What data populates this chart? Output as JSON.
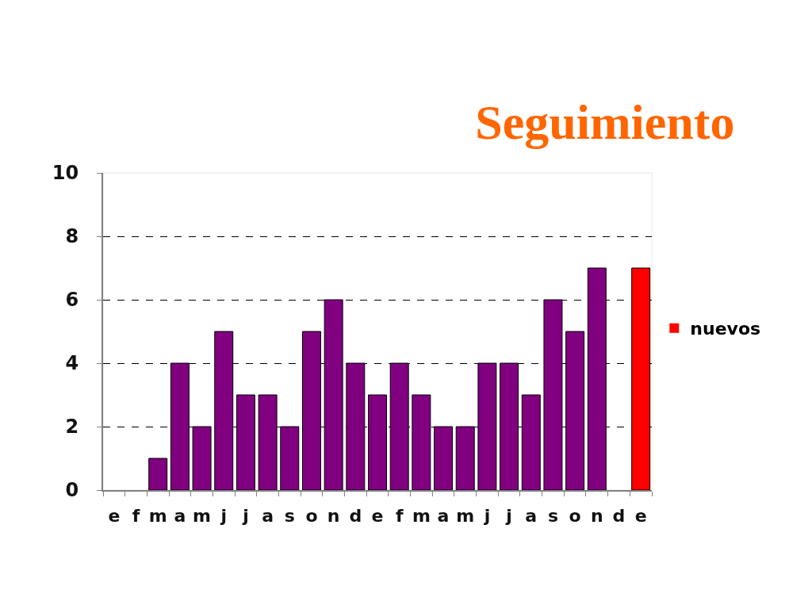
{
  "chart_data": {
    "type": "bar",
    "title": "Seguimiento",
    "categories": [
      "e",
      "f",
      "m",
      "a",
      "m",
      "j",
      "j",
      "a",
      "s",
      "o",
      "n",
      "d",
      "e",
      "f",
      "m",
      "a",
      "m",
      "j",
      "j",
      "a",
      "s",
      "o",
      "n",
      "d",
      "e"
    ],
    "series": [
      {
        "name": "nuevos",
        "color": "#ff0000",
        "values": [
          null,
          null,
          1,
          4,
          2,
          5,
          3,
          3,
          2,
          5,
          6,
          4,
          3,
          4,
          3,
          2,
          2,
          4,
          4,
          3,
          6,
          5,
          7,
          null,
          7
        ],
        "colors": [
          "#800080",
          "#800080",
          "#800080",
          "#800080",
          "#800080",
          "#800080",
          "#800080",
          "#800080",
          "#800080",
          "#800080",
          "#800080",
          "#800080",
          "#800080",
          "#800080",
          "#800080",
          "#800080",
          "#800080",
          "#800080",
          "#800080",
          "#800080",
          "#800080",
          "#800080",
          "#800080",
          "#800080",
          "#ff0000"
        ]
      }
    ],
    "ylim": [
      0,
      10
    ],
    "yticks": [
      0,
      2,
      4,
      6,
      8,
      10
    ],
    "grid": "y",
    "legend": "right"
  }
}
